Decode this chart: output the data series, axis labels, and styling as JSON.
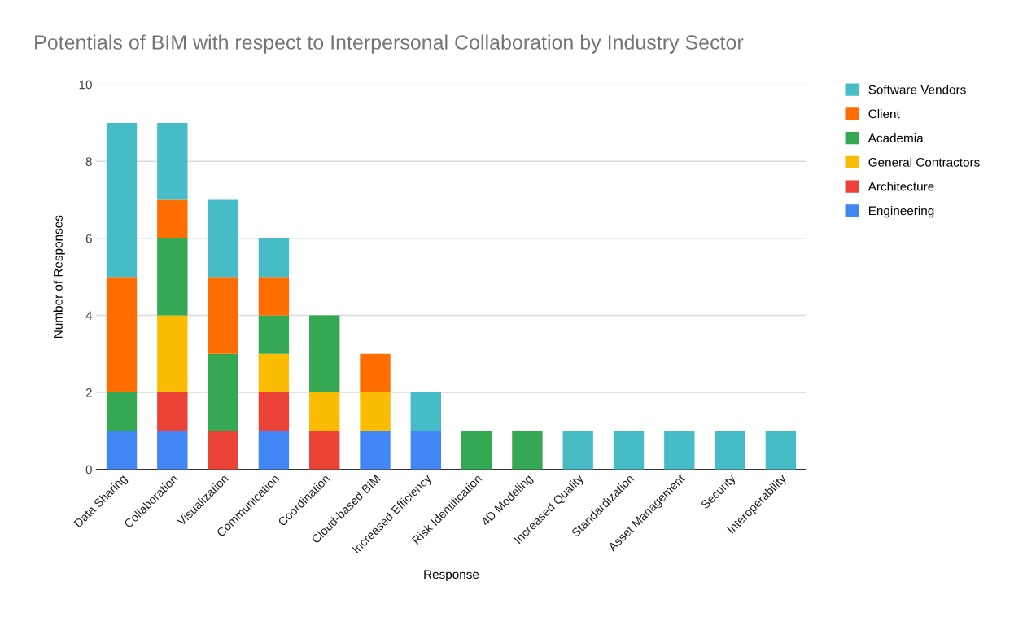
{
  "chart_data": {
    "type": "bar",
    "stacked": true,
    "title": "Potentials of BIM with respect to Interpersonal Collaboration by Industry Sector",
    "xlabel": "Response",
    "ylabel": "Number of Responses",
    "categories": [
      "Data Sharing",
      "Collaboration",
      "Visualization",
      "Communication",
      "Coordination",
      "Cloud-based BIM",
      "Increased Efficiency",
      "Risk Identification",
      "4D Modeling",
      "Increased Quality",
      "Standardization",
      "Asset Management",
      "Security",
      "Interoperability"
    ],
    "series": [
      {
        "name": "Engineering",
        "color": "#4285f4",
        "values": [
          1,
          1,
          0,
          1,
          0,
          1,
          1,
          0,
          0,
          0,
          0,
          0,
          0,
          0
        ]
      },
      {
        "name": "Architecture",
        "color": "#ea4335",
        "values": [
          0,
          1,
          1,
          1,
          1,
          0,
          0,
          0,
          0,
          0,
          0,
          0,
          0,
          0
        ]
      },
      {
        "name": "General Contractors",
        "color": "#fbbc04",
        "values": [
          0,
          2,
          0,
          1,
          1,
          1,
          0,
          0,
          0,
          0,
          0,
          0,
          0,
          0
        ]
      },
      {
        "name": "Academia",
        "color": "#34a853",
        "values": [
          1,
          2,
          2,
          1,
          2,
          0,
          0,
          1,
          1,
          0,
          0,
          0,
          0,
          0
        ]
      },
      {
        "name": "Client",
        "color": "#ff6d01",
        "values": [
          3,
          1,
          2,
          1,
          0,
          1,
          0,
          0,
          0,
          0,
          0,
          0,
          0,
          0
        ]
      },
      {
        "name": "Software Vendors",
        "color": "#46bdc6",
        "values": [
          4,
          2,
          2,
          1,
          0,
          0,
          1,
          0,
          0,
          1,
          1,
          1,
          1,
          1
        ]
      }
    ],
    "ylim": [
      0,
      10
    ],
    "yticks": [
      0,
      2,
      4,
      6,
      8,
      10
    ],
    "grid": "y",
    "legend": "top right"
  }
}
